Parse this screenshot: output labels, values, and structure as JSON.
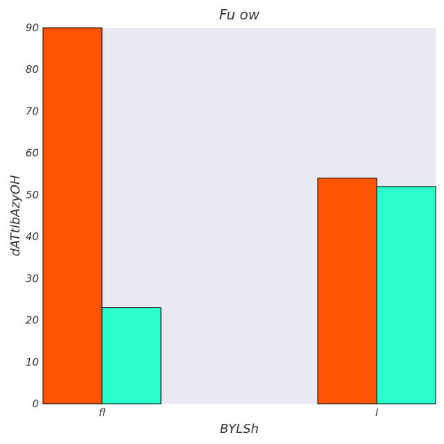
{
  "chart_data": {
    "type": "bar",
    "title": "Fu ow",
    "xlabel": "BYLSh",
    "ylabel": "dATtlbAzyOH",
    "categories": [
      "fl",
      "l"
    ],
    "series": [
      {
        "values": [
          90,
          54
        ]
      },
      {
        "values": [
          23,
          52
        ]
      }
    ],
    "ylim": [
      0,
      90
    ],
    "yticks": [
      0,
      10,
      20,
      30,
      40,
      50,
      60,
      70,
      80,
      90
    ],
    "grid": false,
    "colors": {
      "plot_background": "#e9e9f2",
      "series": [
        "#ff5500",
        "#2affca"
      ],
      "bar_edge": "#000000"
    }
  }
}
